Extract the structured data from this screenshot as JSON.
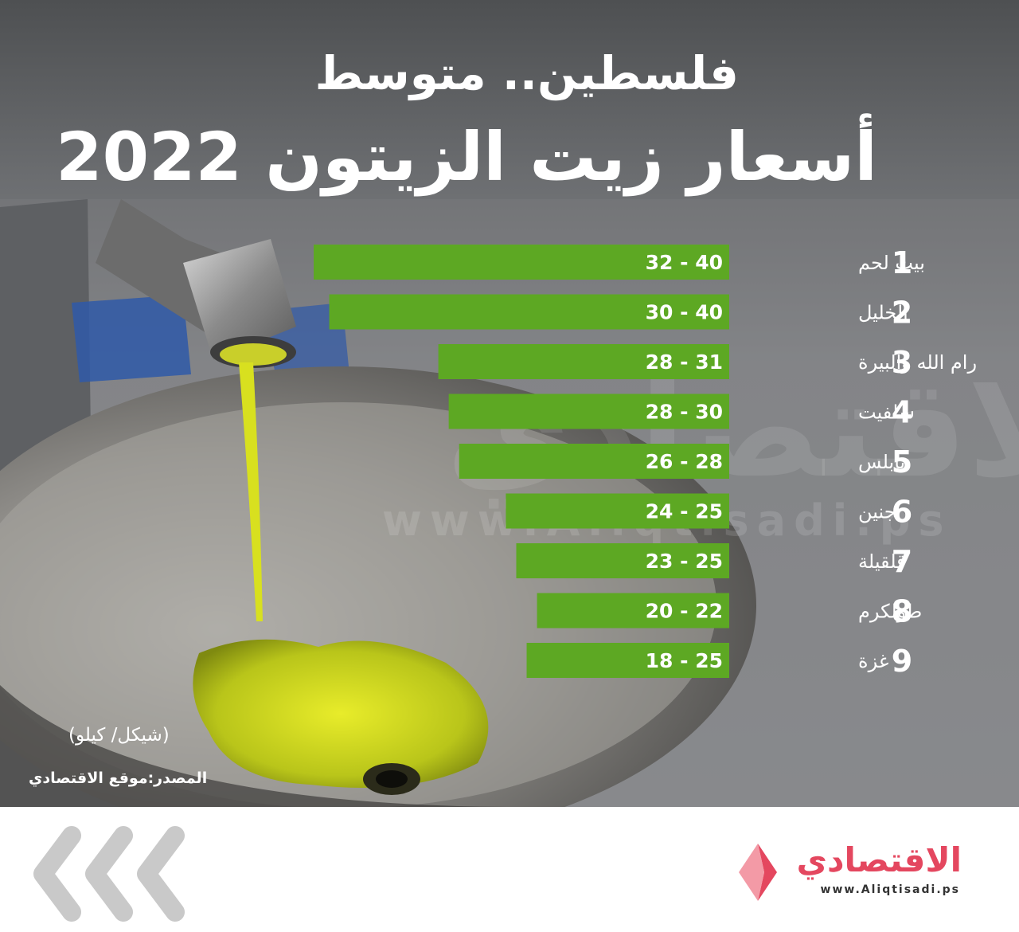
{
  "header": {
    "title_line1": "فلسطين.. متوسط",
    "title_line2": "أسعار زيت الزيتون 2022"
  },
  "watermark": {
    "brand": "الاقتصادي",
    "url": "www.Aliqtisadi.ps"
  },
  "notes": {
    "unit": "(شيكل/ كيلو)",
    "source": "المصدر:موقع الاقتصادي"
  },
  "footer": {
    "brand_name": "الاقتصادي",
    "brand_url": "www.Aliqtisadi.ps"
  },
  "colors": {
    "bar": "#5da823",
    "text": "#ffffff",
    "brand_accent": "#e4475f"
  },
  "icons": [
    "chevron-left-icon",
    "brand-logo-icon"
  ],
  "chart_data": {
    "type": "bar",
    "orientation": "horizontal",
    "ranks": [
      "1",
      "2",
      "3",
      "4",
      "5",
      "6",
      "7",
      "8",
      "9"
    ],
    "categories": [
      "بيت لحم",
      "الخليل",
      "رام الله والبيرة",
      "سلفيت",
      "نابلس",
      "جنين",
      "قلقيلة",
      "طولكرم",
      "غزة"
    ],
    "labels": [
      "32 - 40",
      "30 - 40",
      "28 - 31",
      "28 - 30",
      "26 - 28",
      "24 - 25",
      "23 - 25",
      "20 - 22",
      "18 - 25"
    ],
    "series": [
      {
        "values_min": [
          32,
          30,
          28,
          28,
          26,
          24,
          23,
          20,
          18
        ]
      },
      {
        "values_max": [
          40,
          40,
          31,
          30,
          28,
          25,
          25,
          22,
          25
        ]
      }
    ],
    "bar_values": [
      40,
      38.5,
      28,
      27,
      26,
      21.5,
      20.5,
      18.5,
      19.5
    ],
    "unit": "(شيكل/ كيلو)"
  }
}
